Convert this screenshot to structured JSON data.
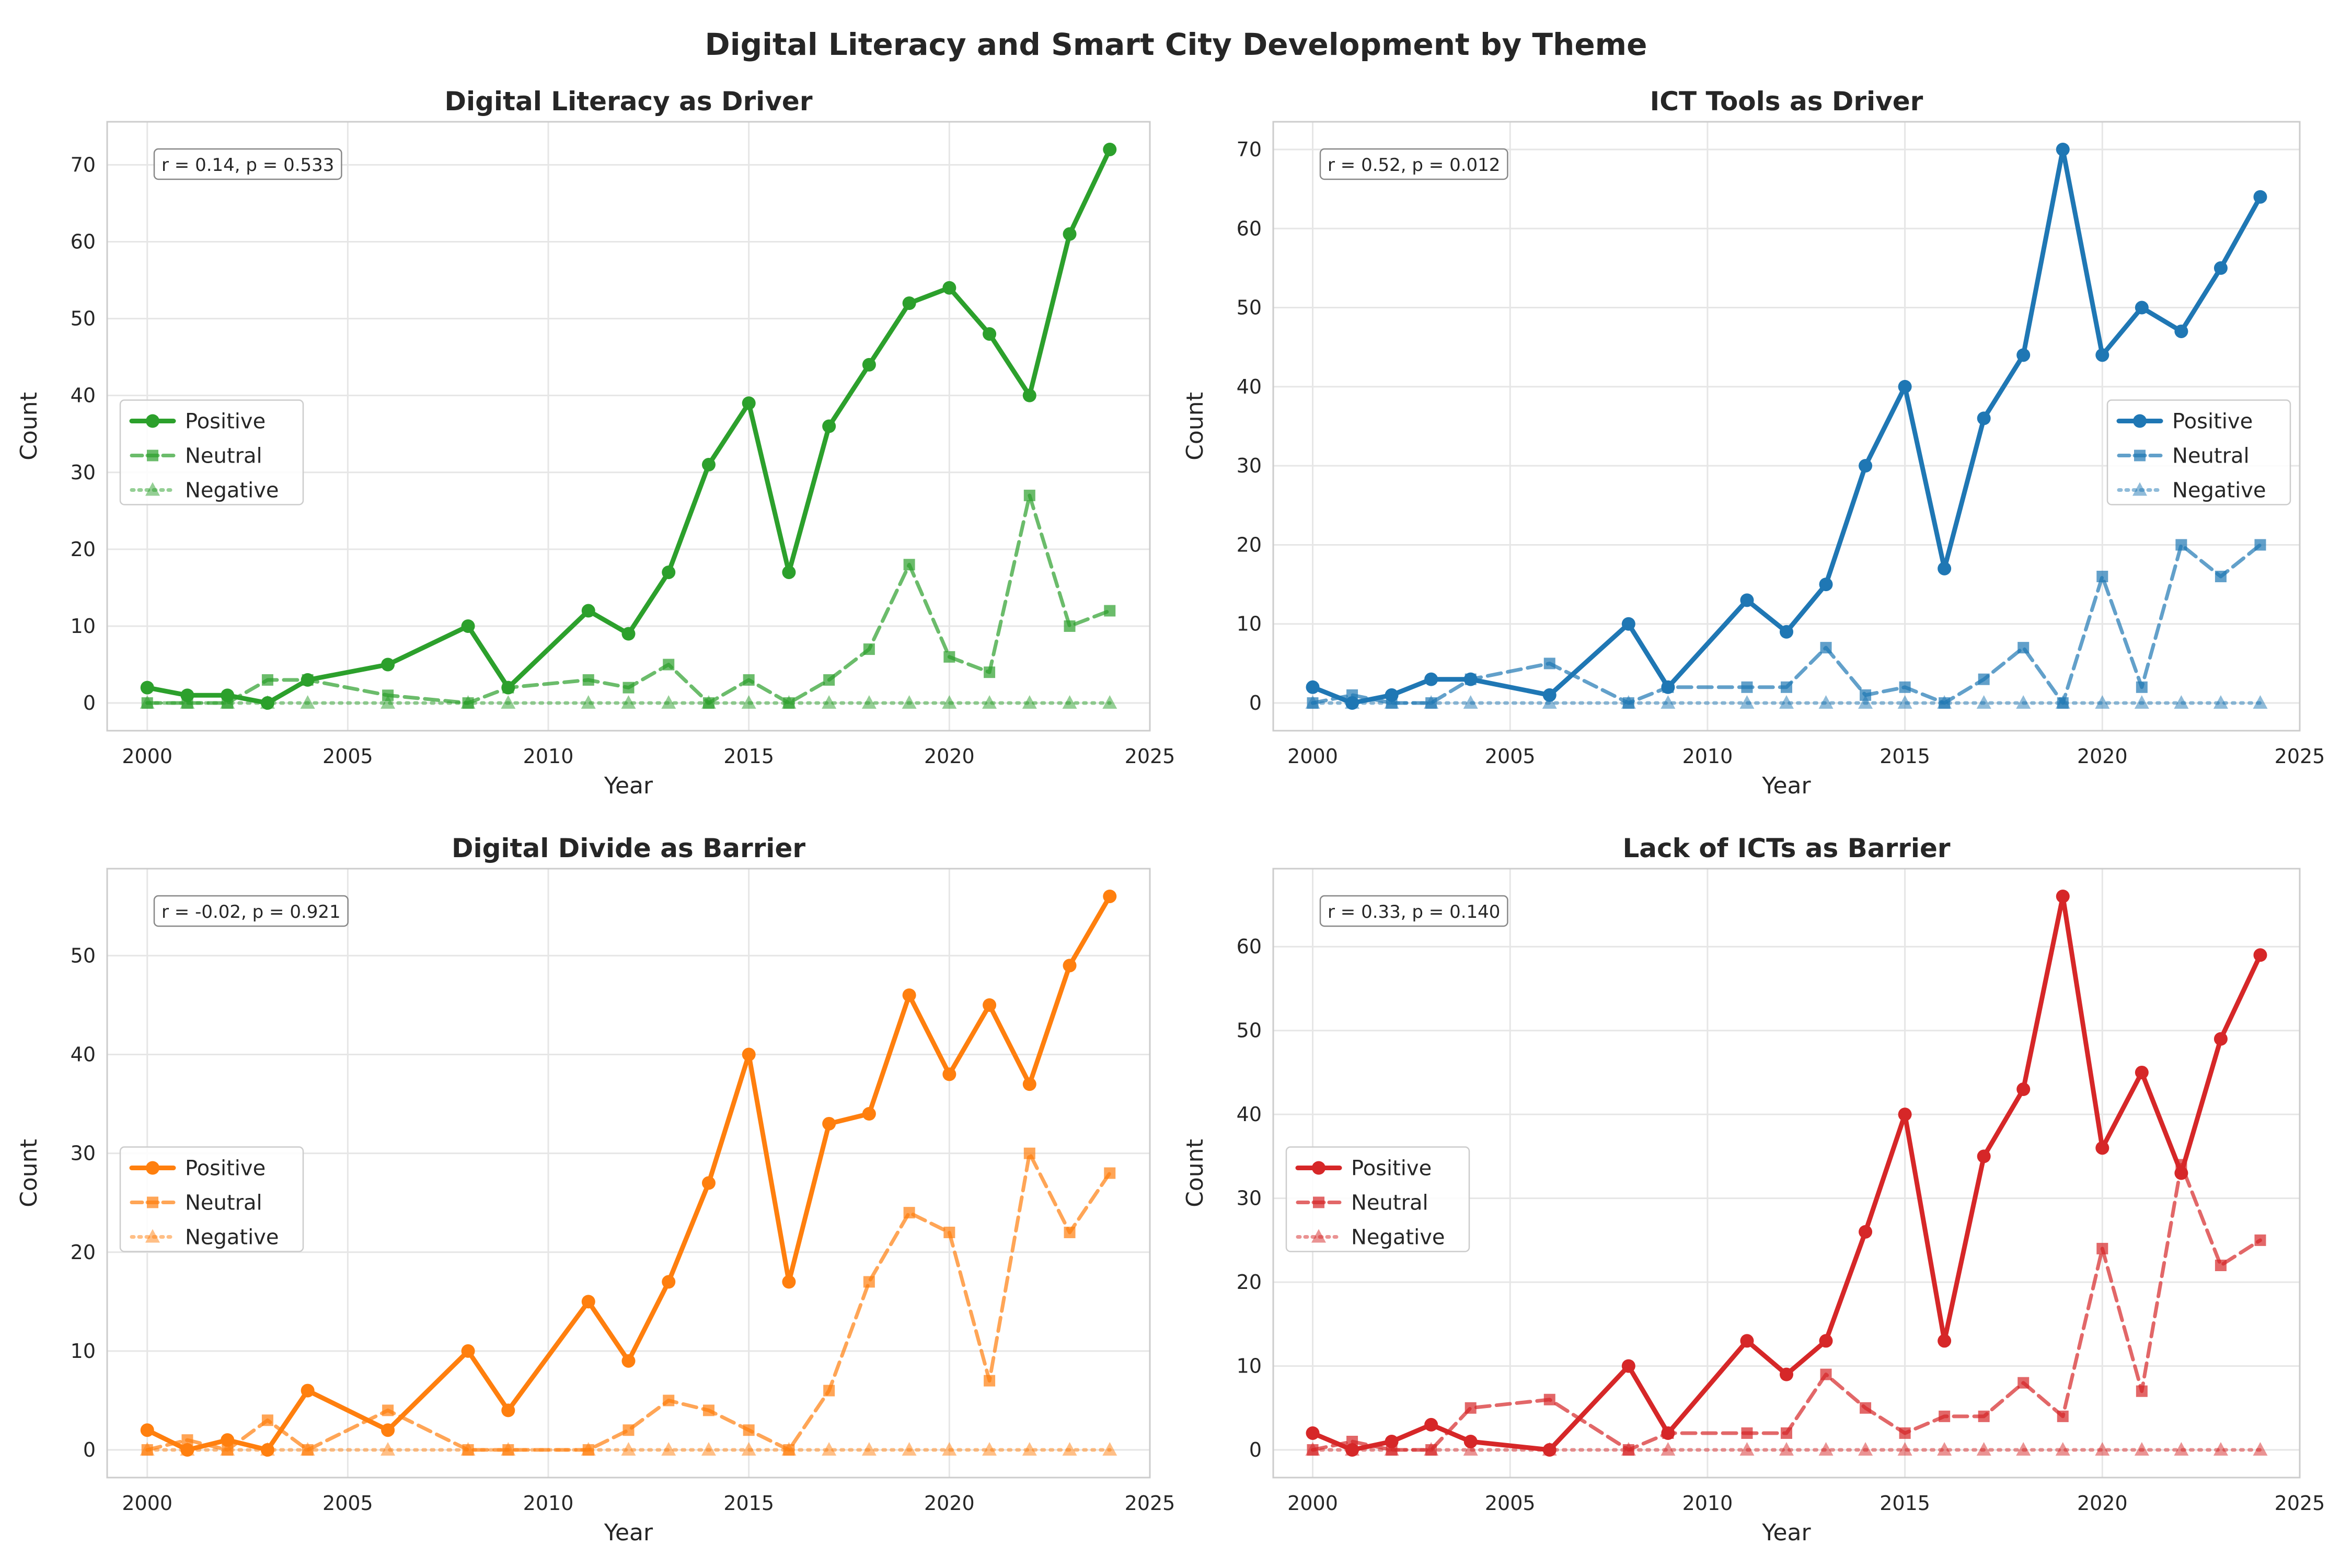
{
  "title": "Digital Literacy and Smart City Development by Theme",
  "chart_data": [
    {
      "type": "line",
      "title": "Digital Literacy as Driver",
      "xlabel": "Year",
      "ylabel": "Count",
      "xlim": [
        1999,
        2025
      ],
      "ylim": [
        -3.6,
        75.6
      ],
      "xticks": [
        2000,
        2005,
        2010,
        2015,
        2020,
        2025
      ],
      "yticks": [
        0,
        10,
        20,
        30,
        40,
        50,
        60,
        70
      ],
      "color": "#2ca02c",
      "annotation": "r = 0.14, p = 0.533",
      "legend_position": "center-left",
      "grid": true,
      "series": [
        {
          "name": "Positive",
          "x": [
            2000,
            2001,
            2002,
            2003,
            2004,
            2006,
            2008,
            2009,
            2011,
            2012,
            2013,
            2014,
            2015,
            2016,
            2017,
            2018,
            2019,
            2020,
            2021,
            2022,
            2023,
            2024
          ],
          "y": [
            2,
            1,
            1,
            0,
            3,
            5,
            10,
            2,
            12,
            9,
            17,
            31,
            39,
            17,
            36,
            44,
            52,
            54,
            48,
            40,
            61,
            72
          ]
        },
        {
          "name": "Neutral",
          "x": [
            2000,
            2001,
            2002,
            2003,
            2004,
            2006,
            2008,
            2009,
            2011,
            2012,
            2013,
            2014,
            2015,
            2016,
            2017,
            2018,
            2019,
            2020,
            2021,
            2022,
            2023,
            2024
          ],
          "y": [
            0,
            0,
            0,
            3,
            3,
            1,
            0,
            2,
            3,
            2,
            5,
            0,
            3,
            0,
            3,
            7,
            18,
            6,
            4,
            27,
            10,
            12
          ]
        },
        {
          "name": "Negative",
          "x": [
            2000,
            2001,
            2002,
            2003,
            2004,
            2006,
            2008,
            2009,
            2011,
            2012,
            2013,
            2014,
            2015,
            2016,
            2017,
            2018,
            2019,
            2020,
            2021,
            2022,
            2023,
            2024
          ],
          "y": [
            0,
            0,
            0,
            0,
            0,
            0,
            0,
            0,
            0,
            0,
            0,
            0,
            0,
            0,
            0,
            0,
            0,
            0,
            0,
            0,
            0,
            0
          ]
        }
      ]
    },
    {
      "type": "line",
      "title": "ICT Tools as Driver",
      "xlabel": "Year",
      "ylabel": "Count",
      "xlim": [
        1999,
        2025
      ],
      "ylim": [
        -3.5,
        73.5
      ],
      "xticks": [
        2000,
        2005,
        2010,
        2015,
        2020,
        2025
      ],
      "yticks": [
        0,
        10,
        20,
        30,
        40,
        50,
        60,
        70
      ],
      "color": "#1f77b4",
      "annotation": "r = 0.52, p = 0.012",
      "legend_position": "center-right",
      "grid": true,
      "series": [
        {
          "name": "Positive",
          "x": [
            2000,
            2001,
            2002,
            2003,
            2004,
            2006,
            2008,
            2009,
            2011,
            2012,
            2013,
            2014,
            2015,
            2016,
            2017,
            2018,
            2019,
            2020,
            2021,
            2022,
            2023,
            2024
          ],
          "y": [
            2,
            0,
            1,
            3,
            3,
            1,
            10,
            2,
            13,
            9,
            15,
            30,
            40,
            17,
            36,
            44,
            70,
            44,
            50,
            47,
            55,
            64
          ]
        },
        {
          "name": "Neutral",
          "x": [
            2000,
            2001,
            2002,
            2003,
            2004,
            2006,
            2008,
            2009,
            2011,
            2012,
            2013,
            2014,
            2015,
            2016,
            2017,
            2018,
            2019,
            2020,
            2021,
            2022,
            2023,
            2024
          ],
          "y": [
            0,
            1,
            0,
            0,
            3,
            5,
            0,
            2,
            2,
            2,
            7,
            1,
            2,
            0,
            3,
            7,
            0,
            16,
            2,
            20,
            16,
            20
          ]
        },
        {
          "name": "Negative",
          "x": [
            2000,
            2001,
            2002,
            2003,
            2004,
            2006,
            2008,
            2009,
            2011,
            2012,
            2013,
            2014,
            2015,
            2016,
            2017,
            2018,
            2019,
            2020,
            2021,
            2022,
            2023,
            2024
          ],
          "y": [
            0,
            0,
            0,
            0,
            0,
            0,
            0,
            0,
            0,
            0,
            0,
            0,
            0,
            0,
            0,
            0,
            0,
            0,
            0,
            0,
            0,
            0
          ]
        }
      ]
    },
    {
      "type": "line",
      "title": "Digital Divide as Barrier",
      "xlabel": "Year",
      "ylabel": "Count",
      "xlim": [
        1999,
        2025
      ],
      "ylim": [
        -2.8,
        58.8
      ],
      "xticks": [
        2000,
        2005,
        2010,
        2015,
        2020,
        2025
      ],
      "yticks": [
        0,
        10,
        20,
        30,
        40,
        50
      ],
      "color": "#ff7f0e",
      "annotation": "r = -0.02, p = 0.921",
      "legend_position": "center-left",
      "grid": true,
      "series": [
        {
          "name": "Positive",
          "x": [
            2000,
            2001,
            2002,
            2003,
            2004,
            2006,
            2008,
            2009,
            2011,
            2012,
            2013,
            2014,
            2015,
            2016,
            2017,
            2018,
            2019,
            2020,
            2021,
            2022,
            2023,
            2024
          ],
          "y": [
            2,
            0,
            1,
            0,
            6,
            2,
            10,
            4,
            15,
            9,
            17,
            27,
            40,
            17,
            33,
            34,
            46,
            38,
            45,
            37,
            49,
            56
          ]
        },
        {
          "name": "Neutral",
          "x": [
            2000,
            2001,
            2002,
            2003,
            2004,
            2006,
            2008,
            2009,
            2011,
            2012,
            2013,
            2014,
            2015,
            2016,
            2017,
            2018,
            2019,
            2020,
            2021,
            2022,
            2023,
            2024
          ],
          "y": [
            0,
            1,
            0,
            3,
            0,
            4,
            0,
            0,
            0,
            2,
            5,
            4,
            2,
            0,
            6,
            17,
            24,
            22,
            7,
            30,
            22,
            28
          ]
        },
        {
          "name": "Negative",
          "x": [
            2000,
            2001,
            2002,
            2003,
            2004,
            2006,
            2008,
            2009,
            2011,
            2012,
            2013,
            2014,
            2015,
            2016,
            2017,
            2018,
            2019,
            2020,
            2021,
            2022,
            2023,
            2024
          ],
          "y": [
            0,
            0,
            0,
            0,
            0,
            0,
            0,
            0,
            0,
            0,
            0,
            0,
            0,
            0,
            0,
            0,
            0,
            0,
            0,
            0,
            0,
            0
          ]
        }
      ]
    },
    {
      "type": "line",
      "title": "Lack of ICTs as Barrier",
      "xlabel": "Year",
      "ylabel": "Count",
      "xlim": [
        1999,
        2025
      ],
      "ylim": [
        -3.3,
        69.3
      ],
      "xticks": [
        2000,
        2005,
        2010,
        2015,
        2020,
        2025
      ],
      "yticks": [
        0,
        10,
        20,
        30,
        40,
        50,
        60
      ],
      "color": "#d62728",
      "annotation": "r = 0.33, p = 0.140",
      "legend_position": "center-left",
      "grid": true,
      "series": [
        {
          "name": "Positive",
          "x": [
            2000,
            2001,
            2002,
            2003,
            2004,
            2006,
            2008,
            2009,
            2011,
            2012,
            2013,
            2014,
            2015,
            2016,
            2017,
            2018,
            2019,
            2020,
            2021,
            2022,
            2023,
            2024
          ],
          "y": [
            2,
            0,
            1,
            3,
            1,
            0,
            10,
            2,
            13,
            9,
            13,
            26,
            40,
            13,
            35,
            43,
            66,
            36,
            45,
            33,
            49,
            59
          ]
        },
        {
          "name": "Neutral",
          "x": [
            2000,
            2001,
            2002,
            2003,
            2004,
            2006,
            2008,
            2009,
            2011,
            2012,
            2013,
            2014,
            2015,
            2016,
            2017,
            2018,
            2019,
            2020,
            2021,
            2022,
            2023,
            2024
          ],
          "y": [
            0,
            1,
            0,
            0,
            5,
            6,
            0,
            2,
            2,
            2,
            9,
            5,
            2,
            4,
            4,
            8,
            4,
            24,
            7,
            34,
            22,
            25
          ]
        },
        {
          "name": "Negative",
          "x": [
            2000,
            2001,
            2002,
            2003,
            2004,
            2006,
            2008,
            2009,
            2011,
            2012,
            2013,
            2014,
            2015,
            2016,
            2017,
            2018,
            2019,
            2020,
            2021,
            2022,
            2023,
            2024
          ],
          "y": [
            0,
            0,
            0,
            0,
            0,
            0,
            0,
            0,
            0,
            0,
            0,
            0,
            0,
            0,
            0,
            0,
            0,
            0,
            0,
            0,
            0,
            0
          ]
        }
      ]
    }
  ]
}
